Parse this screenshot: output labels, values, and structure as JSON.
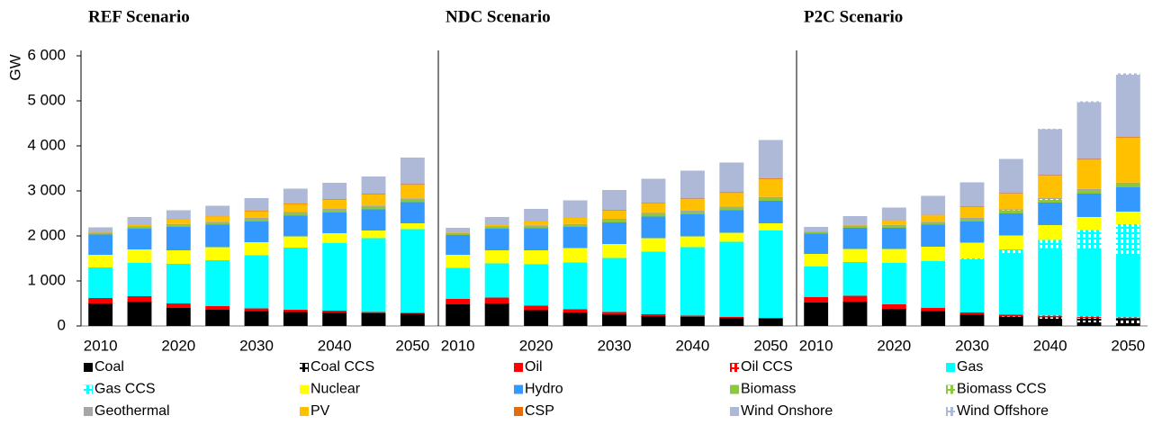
{
  "chart_data": [
    {
      "type": "bar",
      "stacked": true,
      "title": "REF Scenario",
      "ylabel": "GW",
      "legend": "bottom",
      "categories": [
        2010,
        null,
        2020,
        null,
        2030,
        null,
        2040,
        null,
        2050
      ],
      "ylim": [
        0,
        6000
      ],
      "yticks": [
        {
          "value": 0,
          "label": "0"
        },
        {
          "value": 1000,
          "label": "1 000"
        },
        {
          "value": 2000,
          "label": "2 000"
        },
        {
          "value": 3000,
          "label": "3 000"
        },
        {
          "value": 4000,
          "label": "4 000"
        },
        {
          "value": 5000,
          "label": "5 000"
        },
        {
          "value": 6000,
          "label": "6 000"
        }
      ],
      "series": [
        {
          "name": "Coal",
          "color": "#000000",
          "values": [
            500,
            540,
            400,
            360,
            330,
            310,
            300,
            280,
            270
          ]
        },
        {
          "name": "Coal CCS",
          "color": "#000000",
          "hatched": true,
          "values": [
            0,
            0,
            0,
            0,
            0,
            0,
            0,
            0,
            0
          ]
        },
        {
          "name": "Oil",
          "color": "#ff0000",
          "values": [
            120,
            120,
            100,
            80,
            60,
            50,
            40,
            30,
            20
          ]
        },
        {
          "name": "Oil CCS",
          "color": "#ff0000",
          "hatched": true,
          "values": [
            0,
            0,
            0,
            0,
            0,
            0,
            0,
            0,
            0
          ]
        },
        {
          "name": "Gas",
          "color": "#00ffff",
          "values": [
            680,
            740,
            880,
            1020,
            1180,
            1380,
            1500,
            1640,
            1860
          ]
        },
        {
          "name": "Gas CCS",
          "color": "#00ffff",
          "hatched": true,
          "values": [
            0,
            0,
            0,
            0,
            0,
            0,
            0,
            0,
            0
          ]
        },
        {
          "name": "Nuclear",
          "color": "#ffff00",
          "values": [
            280,
            300,
            300,
            290,
            290,
            250,
            220,
            170,
            130
          ]
        },
        {
          "name": "Hydro",
          "color": "#3399ff",
          "values": [
            450,
            460,
            520,
            500,
            460,
            460,
            460,
            470,
            470
          ]
        },
        {
          "name": "Biomass",
          "color": "#8dc63f",
          "values": [
            30,
            40,
            50,
            50,
            60,
            60,
            60,
            60,
            60
          ]
        },
        {
          "name": "Biomass CCS",
          "color": "#8dc63f",
          "hatched": true,
          "values": [
            0,
            0,
            0,
            0,
            0,
            0,
            0,
            0,
            0
          ]
        },
        {
          "name": "Geothermal",
          "color": "#a6a6a6",
          "values": [
            10,
            10,
            15,
            15,
            20,
            20,
            20,
            25,
            25
          ]
        },
        {
          "name": "PV",
          "color": "#ffc000",
          "values": [
            10,
            30,
            100,
            120,
            150,
            180,
            200,
            250,
            300
          ]
        },
        {
          "name": "CSP",
          "color": "#e46c0a",
          "values": [
            0,
            0,
            5,
            5,
            10,
            10,
            10,
            15,
            15
          ]
        },
        {
          "name": "Wind Onshore",
          "color": "#adb9d6",
          "values": [
            110,
            180,
            200,
            230,
            280,
            330,
            370,
            380,
            590
          ]
        },
        {
          "name": "Wind Offshore",
          "color": "#adb9d6",
          "hatched": true,
          "values": [
            0,
            0,
            0,
            0,
            0,
            0,
            0,
            0,
            0
          ]
        }
      ]
    },
    {
      "type": "bar",
      "stacked": true,
      "title": "NDC Scenario",
      "categories": [
        2010,
        null,
        2020,
        null,
        2030,
        null,
        2040,
        null,
        2050
      ],
      "ylim": [
        0,
        6000
      ],
      "series": [
        {
          "name": "Coal",
          "color": "#000000",
          "values": [
            480,
            500,
            350,
            300,
            260,
            220,
            200,
            180,
            160
          ]
        },
        {
          "name": "Coal CCS",
          "color": "#000000",
          "hatched": true,
          "values": [
            0,
            0,
            0,
            0,
            0,
            0,
            0,
            0,
            0
          ]
        },
        {
          "name": "Oil",
          "color": "#ff0000",
          "values": [
            120,
            130,
            100,
            70,
            50,
            40,
            30,
            20,
            20
          ]
        },
        {
          "name": "Oil CCS",
          "color": "#ff0000",
          "hatched": true,
          "values": [
            0,
            0,
            0,
            0,
            0,
            0,
            0,
            0,
            0
          ]
        },
        {
          "name": "Gas",
          "color": "#00ffff",
          "values": [
            690,
            760,
            920,
            1040,
            1200,
            1390,
            1520,
            1670,
            1940
          ]
        },
        {
          "name": "Gas CCS",
          "color": "#00ffff",
          "hatched": true,
          "values": [
            0,
            0,
            0,
            0,
            0,
            0,
            0,
            0,
            0
          ]
        },
        {
          "name": "Nuclear",
          "color": "#ffff00",
          "values": [
            290,
            290,
            310,
            320,
            310,
            300,
            240,
            200,
            160
          ]
        },
        {
          "name": "Hydro",
          "color": "#3399ff",
          "values": [
            440,
            480,
            490,
            470,
            480,
            480,
            490,
            500,
            500
          ]
        },
        {
          "name": "Biomass",
          "color": "#8dc63f",
          "values": [
            30,
            40,
            50,
            50,
            60,
            60,
            60,
            60,
            60
          ]
        },
        {
          "name": "Biomass CCS",
          "color": "#8dc63f",
          "hatched": true,
          "values": [
            0,
            0,
            0,
            0,
            0,
            0,
            0,
            0,
            0
          ]
        },
        {
          "name": "Geothermal",
          "color": "#a6a6a6",
          "values": [
            10,
            10,
            15,
            15,
            20,
            20,
            20,
            25,
            25
          ]
        },
        {
          "name": "PV",
          "color": "#ffc000",
          "values": [
            10,
            30,
            100,
            140,
            180,
            220,
            260,
            300,
            400
          ]
        },
        {
          "name": "CSP",
          "color": "#e46c0a",
          "values": [
            0,
            0,
            5,
            5,
            10,
            10,
            10,
            15,
            15
          ]
        },
        {
          "name": "Wind Onshore",
          "color": "#adb9d6",
          "values": [
            110,
            180,
            260,
            380,
            450,
            530,
            620,
            660,
            850
          ]
        },
        {
          "name": "Wind Offshore",
          "color": "#adb9d6",
          "hatched": true,
          "values": [
            0,
            0,
            0,
            0,
            0,
            0,
            0,
            0,
            0
          ]
        }
      ]
    },
    {
      "type": "bar",
      "stacked": true,
      "title": "P2C Scenario",
      "categories": [
        2010,
        null,
        2020,
        null,
        2030,
        null,
        2040,
        null,
        2050
      ],
      "ylim": [
        0,
        6000
      ],
      "series": [
        {
          "name": "Coal",
          "color": "#000000",
          "values": [
            520,
            540,
            380,
            330,
            250,
            200,
            130,
            80,
            60
          ]
        },
        {
          "name": "Coal CCS",
          "color": "#000000",
          "hatched": true,
          "values": [
            0,
            0,
            0,
            0,
            0,
            10,
            60,
            100,
            100
          ]
        },
        {
          "name": "Oil",
          "color": "#ff0000",
          "values": [
            120,
            130,
            100,
            70,
            50,
            40,
            30,
            20,
            20
          ]
        },
        {
          "name": "Oil CCS",
          "color": "#ff0000",
          "hatched": true,
          "values": [
            0,
            0,
            0,
            0,
            0,
            0,
            10,
            10,
            10
          ]
        },
        {
          "name": "Gas",
          "color": "#00ffff",
          "values": [
            680,
            750,
            920,
            1040,
            1180,
            1370,
            1500,
            1510,
            1370
          ]
        },
        {
          "name": "Gas CCS",
          "color": "#00ffff",
          "hatched": true,
          "values": [
            0,
            0,
            0,
            0,
            20,
            80,
            180,
            410,
            700
          ]
        },
        {
          "name": "Nuclear",
          "color": "#ffff00",
          "values": [
            280,
            290,
            310,
            320,
            350,
            310,
            330,
            290,
            280
          ]
        },
        {
          "name": "Hydro",
          "color": "#3399ff",
          "values": [
            450,
            470,
            470,
            490,
            470,
            490,
            500,
            520,
            540
          ]
        },
        {
          "name": "Biomass",
          "color": "#8dc63f",
          "values": [
            30,
            40,
            50,
            50,
            60,
            60,
            60,
            60,
            60
          ]
        },
        {
          "name": "Biomass CCS",
          "color": "#8dc63f",
          "hatched": true,
          "values": [
            0,
            0,
            0,
            0,
            0,
            10,
            20,
            20,
            20
          ]
        },
        {
          "name": "Geothermal",
          "color": "#a6a6a6",
          "values": [
            10,
            10,
            15,
            15,
            20,
            20,
            20,
            25,
            25
          ]
        },
        {
          "name": "PV",
          "color": "#ffc000",
          "values": [
            10,
            30,
            100,
            150,
            250,
            350,
            500,
            650,
            1000
          ]
        },
        {
          "name": "CSP",
          "color": "#e46c0a",
          "values": [
            0,
            0,
            5,
            5,
            10,
            10,
            10,
            15,
            15
          ]
        },
        {
          "name": "Wind Onshore",
          "color": "#adb9d6",
          "values": [
            100,
            180,
            280,
            420,
            530,
            760,
            1020,
            1260,
            1380
          ]
        },
        {
          "name": "Wind Offshore",
          "color": "#adb9d6",
          "hatched": true,
          "values": [
            0,
            0,
            0,
            0,
            0,
            0,
            10,
            20,
            30
          ]
        }
      ]
    }
  ]
}
